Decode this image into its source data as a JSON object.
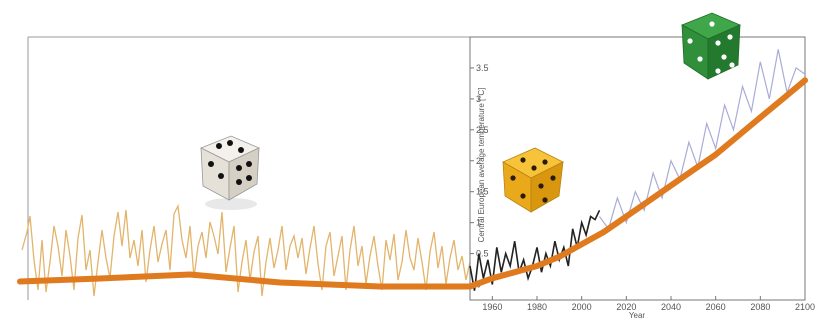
{
  "chart_data": {
    "type": "line",
    "xlabel": "Year",
    "ylabel": "Central European average temperature [°C]",
    "x_ticks": [
      "1960",
      "1980",
      "2000",
      "2020",
      "2040",
      "2060",
      "2080",
      "2100"
    ],
    "y_ticks": [
      "0",
      "0.5",
      "1",
      "1.5",
      "2",
      "2.5",
      "3",
      "3.5"
    ],
    "xlim": [
      1950,
      2100
    ],
    "ylim": [
      -0.25,
      4.0
    ],
    "grid": false,
    "colors": {
      "trend": "#e07a1f",
      "past_variability": "#e3b46b",
      "observed": "#222222",
      "projection": "#a9acd6"
    },
    "series": [
      {
        "role": "smoothed-trend",
        "x": [
          1950,
          1960,
          1970,
          1980,
          1990,
          2000,
          2010,
          2020,
          2030,
          2040,
          2050,
          2060,
          2070,
          2080,
          2090,
          2100
        ],
        "values": [
          0.0,
          0.1,
          0.2,
          0.3,
          0.45,
          0.65,
          0.85,
          1.1,
          1.35,
          1.6,
          1.85,
          2.1,
          2.4,
          2.7,
          3.0,
          3.3
        ]
      },
      {
        "role": "observed",
        "x": [
          1950,
          1952,
          1954,
          1956,
          1958,
          1960,
          1962,
          1964,
          1966,
          1968,
          1970,
          1972,
          1974,
          1976,
          1978,
          1980,
          1982,
          1984,
          1986,
          1988,
          1990,
          1992,
          1994,
          1996,
          1998,
          2000,
          2002,
          2004,
          2006,
          2008
        ],
        "values": [
          0.3,
          -0.1,
          0.5,
          0.1,
          0.4,
          0.0,
          0.6,
          0.2,
          0.5,
          0.3,
          0.7,
          0.2,
          0.4,
          0.1,
          0.3,
          0.6,
          0.2,
          0.5,
          0.3,
          0.7,
          0.4,
          0.6,
          0.3,
          0.9,
          0.6,
          1.0,
          0.8,
          1.1,
          1.05,
          1.2
        ]
      },
      {
        "role": "projection",
        "x": [
          2008,
          2012,
          2016,
          2020,
          2024,
          2028,
          2032,
          2036,
          2040,
          2044,
          2048,
          2052,
          2056,
          2060,
          2064,
          2068,
          2072,
          2076,
          2080,
          2084,
          2088,
          2092,
          2096,
          2100
        ],
        "values": [
          1.1,
          0.9,
          1.4,
          1.0,
          1.5,
          1.2,
          1.8,
          1.4,
          2.0,
          1.7,
          2.3,
          1.9,
          2.6,
          2.2,
          2.9,
          2.5,
          3.2,
          2.8,
          3.6,
          3.0,
          3.8,
          3.1,
          3.5,
          3.4
        ]
      }
    ]
  }
}
